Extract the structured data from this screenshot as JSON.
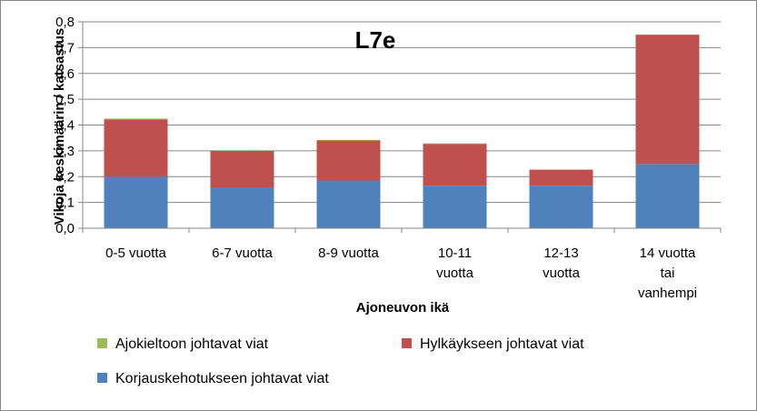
{
  "chart_data": {
    "type": "bar",
    "stacked": true,
    "title": "L7e",
    "xlabel": "Ajoneuvon ikä",
    "ylabel": "Vikoja keskimäärin / katsastus",
    "ylim": [
      0,
      0.8
    ],
    "yticks": [
      "0,0",
      "0,1",
      "0,2",
      "0,3",
      "0,4",
      "0,5",
      "0,6",
      "0,7",
      "0,8"
    ],
    "grid": true,
    "legend_position": "bottom",
    "categories": [
      [
        "0-5 vuotta"
      ],
      [
        "6-7 vuotta"
      ],
      [
        "8-9 vuotta"
      ],
      [
        "10-11",
        "vuotta"
      ],
      [
        "12-13",
        "vuotta"
      ],
      [
        "14 vuotta",
        "tai",
        "vanhempi"
      ]
    ],
    "series": [
      {
        "name": "Korjauskehotukseen johtavat viat",
        "color": "#4F81BD",
        "values": [
          0.2,
          0.157,
          0.185,
          0.165,
          0.165,
          0.248
        ]
      },
      {
        "name": "Hylkäykseen johtavat viat",
        "color": "#C0504D",
        "values": [
          0.222,
          0.143,
          0.155,
          0.162,
          0.062,
          0.502
        ]
      },
      {
        "name": "Ajokieltoon johtavat viat",
        "color": "#9BBB59",
        "values": [
          0.003,
          0.002,
          0.002,
          0.002,
          0.0,
          0.0
        ]
      }
    ],
    "legend_order": [
      2,
      1,
      0
    ]
  }
}
